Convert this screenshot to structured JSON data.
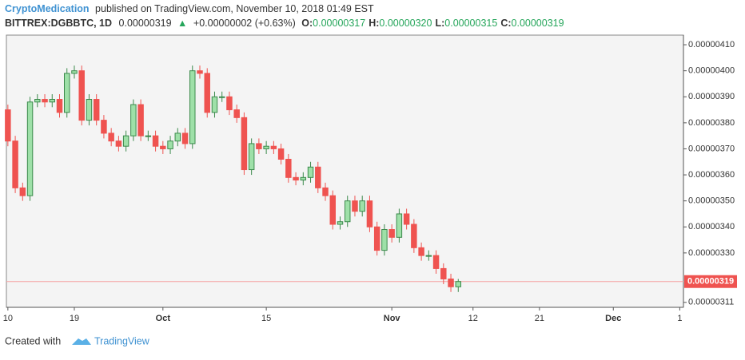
{
  "header": {
    "author": "CryptoMedication",
    "published": "published on TradingView.com, November 10, 2018 01:49 EST",
    "symbol": "BITTREX:DGBBTC, 1D",
    "price": "0.00000319",
    "arrow": "▲",
    "change": "+0.00000002 (+0.63%)",
    "ohlc": [
      {
        "label": "O:",
        "value": "0.00000317"
      },
      {
        "label": "H:",
        "value": "0.00000320"
      },
      {
        "label": "L:",
        "value": "0.00000315"
      },
      {
        "label": "C:",
        "value": "0.00000319"
      }
    ]
  },
  "footer": {
    "created": "Created with",
    "brand": "TradingView"
  },
  "chart_data": {
    "type": "candlestick",
    "x": [
      "09-10",
      "09-11",
      "09-12",
      "09-13",
      "09-14",
      "09-15",
      "09-16",
      "09-17",
      "09-18",
      "09-19",
      "09-20",
      "09-21",
      "09-22",
      "09-23",
      "09-24",
      "09-25",
      "09-26",
      "09-27",
      "09-28",
      "09-29",
      "09-30",
      "10-01",
      "10-02",
      "10-03",
      "10-04",
      "10-05",
      "10-06",
      "10-07",
      "10-08",
      "10-09",
      "10-10",
      "10-11",
      "10-12",
      "10-13",
      "10-14",
      "10-15",
      "10-16",
      "10-17",
      "10-18",
      "10-19",
      "10-20",
      "10-21",
      "10-22",
      "10-23",
      "10-24",
      "10-25",
      "10-26",
      "10-27",
      "10-28",
      "10-29",
      "10-30",
      "10-31",
      "11-01",
      "11-02",
      "11-03",
      "11-04",
      "11-05",
      "11-06",
      "11-07",
      "11-08",
      "11-09",
      "11-10"
    ],
    "open": [
      3.85e-06,
      3.73e-06,
      3.55e-06,
      3.52e-06,
      3.88e-06,
      3.89e-06,
      3.88e-06,
      3.89e-06,
      3.84e-06,
      3.99e-06,
      4e-06,
      3.81e-06,
      3.89e-06,
      3.81e-06,
      3.76e-06,
      3.73e-06,
      3.71e-06,
      3.75e-06,
      3.87e-06,
      3.75e-06,
      3.75e-06,
      3.71e-06,
      3.7e-06,
      3.73e-06,
      3.76e-06,
      3.72e-06,
      4e-06,
      3.99e-06,
      3.84e-06,
      3.9e-06,
      3.9e-06,
      3.85e-06,
      3.82e-06,
      3.62e-06,
      3.72e-06,
      3.7e-06,
      3.71e-06,
      3.7e-06,
      3.66e-06,
      3.59e-06,
      3.58e-06,
      3.59e-06,
      3.63e-06,
      3.55e-06,
      3.52e-06,
      3.41e-06,
      3.42e-06,
      3.5e-06,
      3.46e-06,
      3.5e-06,
      3.4e-06,
      3.31e-06,
      3.39e-06,
      3.36e-06,
      3.45e-06,
      3.41e-06,
      3.32e-06,
      3.29e-06,
      3.29e-06,
      3.24e-06,
      3.2e-06,
      3.17e-06
    ],
    "high": [
      3.87e-06,
      3.75e-06,
      3.57e-06,
      3.9e-06,
      3.91e-06,
      3.91e-06,
      3.91e-06,
      3.91e-06,
      4.01e-06,
      4.02e-06,
      4.02e-06,
      3.91e-06,
      3.91e-06,
      3.83e-06,
      3.78e-06,
      3.75e-06,
      3.77e-06,
      3.89e-06,
      3.89e-06,
      3.77e-06,
      3.77e-06,
      3.73e-06,
      3.75e-06,
      3.78e-06,
      3.78e-06,
      4.02e-06,
      4.02e-06,
      4.01e-06,
      3.92e-06,
      3.92e-06,
      3.92e-06,
      3.87e-06,
      3.84e-06,
      3.74e-06,
      3.74e-06,
      3.73e-06,
      3.73e-06,
      3.72e-06,
      3.68e-06,
      3.61e-06,
      3.61e-06,
      3.65e-06,
      3.65e-06,
      3.57e-06,
      3.54e-06,
      3.44e-06,
      3.52e-06,
      3.52e-06,
      3.52e-06,
      3.52e-06,
      3.42e-06,
      3.41e-06,
      3.41e-06,
      3.47e-06,
      3.47e-06,
      3.43e-06,
      3.34e-06,
      3.31e-06,
      3.31e-06,
      3.26e-06,
      3.22e-06,
      3.2e-06
    ],
    "low": [
      3.71e-06,
      3.53e-06,
      3.5e-06,
      3.5e-06,
      3.86e-06,
      3.86e-06,
      3.86e-06,
      3.82e-06,
      3.82e-06,
      3.97e-06,
      3.79e-06,
      3.79e-06,
      3.79e-06,
      3.74e-06,
      3.71e-06,
      3.69e-06,
      3.69e-06,
      3.73e-06,
      3.73e-06,
      3.73e-06,
      3.69e-06,
      3.68e-06,
      3.68e-06,
      3.71e-06,
      3.7e-06,
      3.7e-06,
      3.97e-06,
      3.82e-06,
      3.82e-06,
      3.88e-06,
      3.83e-06,
      3.8e-06,
      3.6e-06,
      3.6e-06,
      3.68e-06,
      3.68e-06,
      3.68e-06,
      3.64e-06,
      3.57e-06,
      3.56e-06,
      3.56e-06,
      3.57e-06,
      3.53e-06,
      3.5e-06,
      3.39e-06,
      3.39e-06,
      3.4e-06,
      3.44e-06,
      3.44e-06,
      3.38e-06,
      3.29e-06,
      3.29e-06,
      3.34e-06,
      3.34e-06,
      3.39e-06,
      3.3e-06,
      3.27e-06,
      3.27e-06,
      3.22e-06,
      3.18e-06,
      3.15e-06,
      3.15e-06
    ],
    "close": [
      3.73e-06,
      3.55e-06,
      3.52e-06,
      3.88e-06,
      3.89e-06,
      3.88e-06,
      3.89e-06,
      3.84e-06,
      3.99e-06,
      4e-06,
      3.81e-06,
      3.89e-06,
      3.81e-06,
      3.76e-06,
      3.73e-06,
      3.71e-06,
      3.75e-06,
      3.87e-06,
      3.75e-06,
      3.75e-06,
      3.71e-06,
      3.7e-06,
      3.73e-06,
      3.76e-06,
      3.72e-06,
      4e-06,
      3.99e-06,
      3.84e-06,
      3.9e-06,
      3.9e-06,
      3.85e-06,
      3.82e-06,
      3.62e-06,
      3.72e-06,
      3.7e-06,
      3.71e-06,
      3.7e-06,
      3.66e-06,
      3.59e-06,
      3.58e-06,
      3.59e-06,
      3.63e-06,
      3.55e-06,
      3.52e-06,
      3.41e-06,
      3.42e-06,
      3.5e-06,
      3.46e-06,
      3.5e-06,
      3.4e-06,
      3.31e-06,
      3.39e-06,
      3.36e-06,
      3.45e-06,
      3.41e-06,
      3.32e-06,
      3.29e-06,
      3.29e-06,
      3.24e-06,
      3.2e-06,
      3.17e-06,
      3.19e-06
    ],
    "up_color": "#9ee0a8",
    "down_color": "#ef5350",
    "xlim": [
      -0.2,
      91.5
    ],
    "xticks": [
      {
        "value": 0,
        "label": "10"
      },
      {
        "value": 9,
        "label": "19"
      },
      {
        "value": 21,
        "label": "Oct"
      },
      {
        "value": 35,
        "label": "15"
      },
      {
        "value": 52,
        "label": "Nov"
      },
      {
        "value": 63,
        "label": "12"
      },
      {
        "value": 72,
        "label": "21"
      },
      {
        "value": 82,
        "label": "Dec"
      },
      {
        "value": 91,
        "label": "1"
      }
    ],
    "ylim": [
      3.091e-06,
      4.137e-06
    ],
    "yticks": [
      {
        "value": 3.11e-06,
        "label": "0.00000311"
      },
      {
        "value": 3.3e-06,
        "label": "0.00000330"
      },
      {
        "value": 3.4e-06,
        "label": "0.00000340"
      },
      {
        "value": 3.5e-06,
        "label": "0.00000350"
      },
      {
        "value": 3.6e-06,
        "label": "0.00000360"
      },
      {
        "value": 3.7e-06,
        "label": "0.00000370"
      },
      {
        "value": 3.8e-06,
        "label": "0.00000380"
      },
      {
        "value": 3.9e-06,
        "label": "0.00000390"
      },
      {
        "value": 4e-06,
        "label": "0.00000400"
      },
      {
        "value": 4.1e-06,
        "label": "0.00000410"
      }
    ],
    "last_price": {
      "value": 3.19e-06,
      "label": "0.00000319"
    }
  }
}
